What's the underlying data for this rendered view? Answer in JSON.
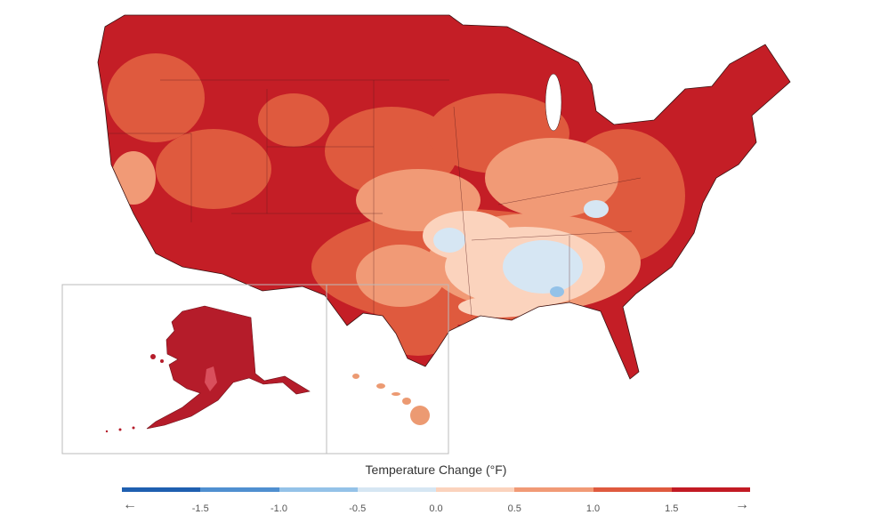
{
  "legend": {
    "title": "Temperature Change (°F)",
    "ticks": [
      "-1.5",
      "-1.0",
      "-0.5",
      "0.0",
      "0.5",
      "1.0",
      "1.5"
    ],
    "bins": [
      "#1f5fb0",
      "#4f8fd0",
      "#94c2e8",
      "#d6e6f3",
      "#fbd3bd",
      "#f19a76",
      "#df5a3e",
      "#c21a24"
    ],
    "arrow_left": "←",
    "arrow_right": "→"
  },
  "colors": {
    "warm_dark": "#c41e26",
    "warm_mid": "#df5a3e",
    "warm_light": "#f19a76",
    "warm_pale": "#fbd3bd",
    "neutral": "#fcebe2",
    "cool_pale": "#d6e6f3",
    "cool_light": "#94c2e8",
    "alaska": "#b51c2a",
    "hawaii": "#ec9a72"
  },
  "regions": [
    "contiguous-us",
    "alaska",
    "hawaii"
  ]
}
